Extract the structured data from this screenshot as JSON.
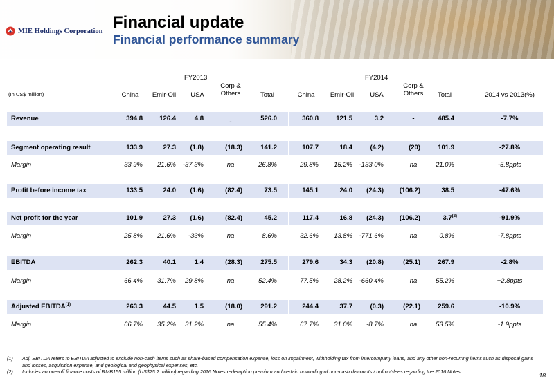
{
  "header": {
    "company": "MIE Holdings Corporation",
    "title": "Financial update",
    "subtitle": "Financial performance summary"
  },
  "table": {
    "unit_note": "(In US$ million)",
    "fy2013": "FY2013",
    "fy2014": "FY2014",
    "columns": {
      "china": "China",
      "emir": "Emir-Oil",
      "usa": "USA",
      "corp_line1": "Corp &",
      "corp_line2": "Others",
      "total": "Total",
      "vs": "2014 vs 2013(%)"
    },
    "rows": [
      {
        "label": "Revenue",
        "y13": [
          "394.8",
          "126.4",
          "4.8",
          "-",
          "526.0"
        ],
        "y14": [
          "360.8",
          "121.5",
          "3.2",
          "-",
          "485.4"
        ],
        "vs": "-7.7%"
      },
      {
        "label": "Segment operating result",
        "y13": [
          "133.9",
          "27.3",
          "(1.8)",
          "(18.3)",
          "141.2"
        ],
        "y14": [
          "107.7",
          "18.4",
          "(4.2)",
          "(20)",
          "101.9"
        ],
        "vs": "-27.8%"
      },
      {
        "label": "Margin",
        "y13": [
          "33.9%",
          "21.6%",
          "-37.3%",
          "na",
          "26.8%"
        ],
        "y14": [
          "29.8%",
          "15.2%",
          "-133.0%",
          "na",
          "21.0%"
        ],
        "vs": "-5.8ppts"
      },
      {
        "label": "Profit before income tax",
        "y13": [
          "133.5",
          "24.0",
          "(1.6)",
          "(82.4)",
          "73.5"
        ],
        "y14": [
          "145.1",
          "24.0",
          "(24.3)",
          "(106.2)",
          "38.5"
        ],
        "vs": "-47.6%"
      },
      {
        "label": "Net profit for the year",
        "y13": [
          "101.9",
          "27.3",
          "(1.6)",
          "(82.4)",
          "45.2"
        ],
        "y14": [
          "117.4",
          "16.8",
          "(24.3)",
          "(106.2)",
          "3.7"
        ],
        "y14_total_sup": "(2)",
        "vs": "-91.9%"
      },
      {
        "label": "Margin",
        "y13": [
          "25.8%",
          "21.6%",
          "-33%",
          "na",
          "8.6%"
        ],
        "y14": [
          "32.6%",
          "13.8%",
          "-771.6%",
          "na",
          "0.8%"
        ],
        "vs": "-7.8ppts"
      },
      {
        "label": "EBITDA",
        "y13": [
          "262.3",
          "40.1",
          "1.4",
          "(28.3)",
          "275.5"
        ],
        "y14": [
          "279.6",
          "34.3",
          "(20.8)",
          "(25.1)",
          "267.9"
        ],
        "vs": "-2.8%"
      },
      {
        "label": "Margin",
        "y13": [
          "66.4%",
          "31.7%",
          "29.8%",
          "na",
          "52.4%"
        ],
        "y14": [
          "77.5%",
          "28.2%",
          "-660.4%",
          "na",
          "55.2%"
        ],
        "vs": "+2.8ppts"
      },
      {
        "label": "Adjusted EBITDA",
        "label_sup": "(1)",
        "y13": [
          "263.3",
          "44.5",
          "1.5",
          "(18.0)",
          "291.2"
        ],
        "y14": [
          "244.4",
          "37.7",
          "(0.3)",
          "(22.1)",
          "259.6"
        ],
        "vs": "-10.9%"
      },
      {
        "label": "Margin",
        "y13": [
          "66.7%",
          "35.2%",
          "31.2%",
          "na",
          "55.4%"
        ],
        "y14": [
          "67.7%",
          "31.0%",
          "-8.7%",
          "na",
          "53.5%"
        ],
        "vs": "-1.9ppts"
      }
    ]
  },
  "footnotes": [
    {
      "num": "(1)",
      "text": "Adj. EBITDA refers to EBITDA adjusted to exclude non-cash items such as share-based compensation expense, loss on impairment, withholding tax from intercompany loans, and any other non-recurring items such as disposal gains and losses, acquisition expense, and geological and geophysical expenses, etc."
    },
    {
      "num": "(2)",
      "text": "Includes an one-off finance costs of RMB155 million (US$25.2 million) regarding 2016 Notes redemption premium and certain unwinding of non-cash discounts / upfront-fees regarding the 2016 Notes."
    }
  ],
  "page_number": "18",
  "colors": {
    "band": "#dde3f3",
    "subtitle": "#2f5597",
    "logo": "#1f2f6b",
    "logo_mark": "#d9342b"
  }
}
